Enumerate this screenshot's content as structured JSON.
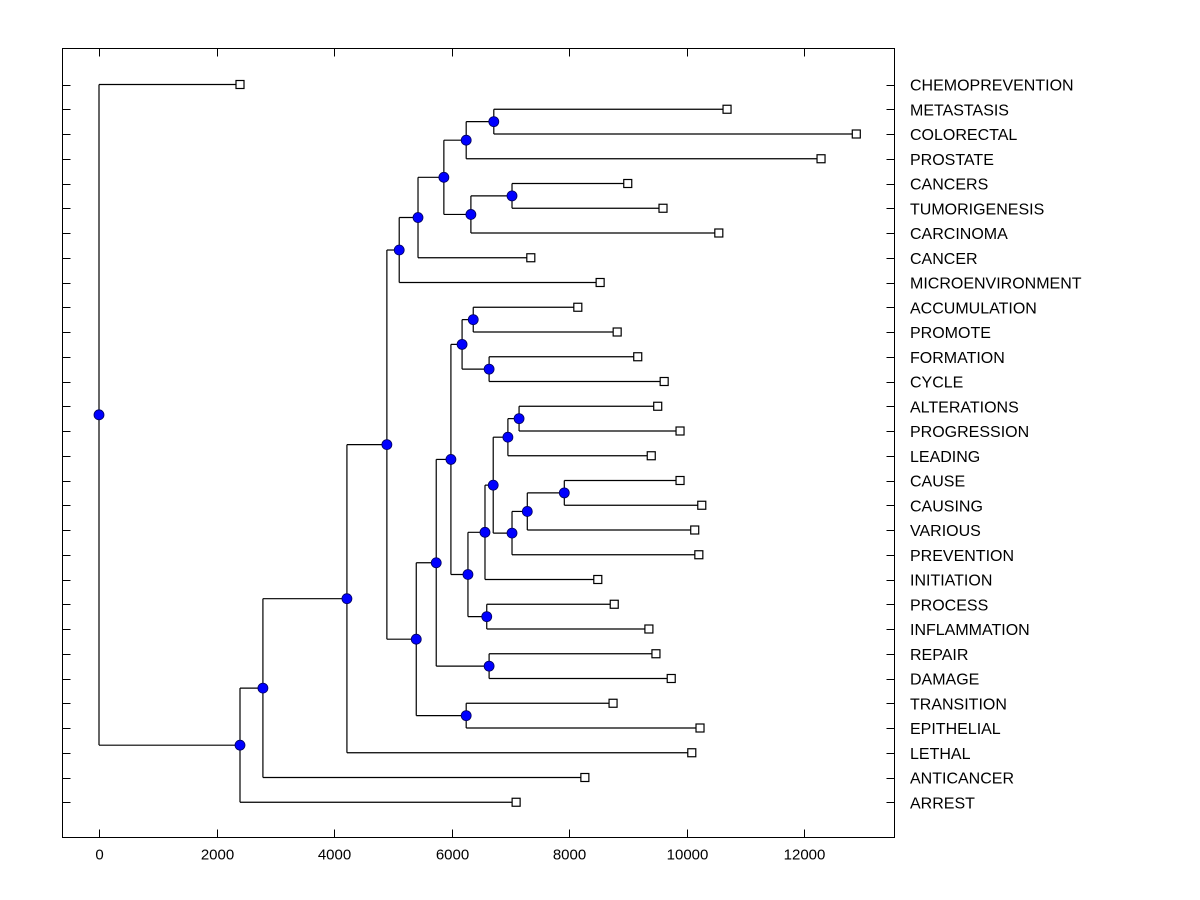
{
  "chart_data": {
    "type": "dendrogram",
    "title": "",
    "xlabel": "",
    "ylabel": "",
    "xlim": [
      -600,
      13500
    ],
    "xticks": [
      0,
      2000,
      4000,
      6000,
      8000,
      10000,
      12000
    ],
    "xtick_labels": [
      "0",
      "2000",
      "4000",
      "6000",
      "8000",
      "10000",
      "12000"
    ],
    "grid": false,
    "node_color": "#0000ff",
    "leaf_marker": "open-square",
    "leaves": [
      {
        "label": "CHEMOPREVENTION",
        "value": 2400
      },
      {
        "label": "METASTASIS",
        "value": 10690
      },
      {
        "label": "COLORECTAL",
        "value": 12890
      },
      {
        "label": "PROSTATE",
        "value": 12290
      },
      {
        "label": "CANCERS",
        "value": 9000
      },
      {
        "label": "TUMORIGENESIS",
        "value": 9600
      },
      {
        "label": "CARCINOMA",
        "value": 10550
      },
      {
        "label": "CANCER",
        "value": 7350
      },
      {
        "label": "MICROENVIRONMENT",
        "value": 8530
      },
      {
        "label": "ACCUMULATION",
        "value": 8150
      },
      {
        "label": "PROMOTE",
        "value": 8820
      },
      {
        "label": "FORMATION",
        "value": 9170
      },
      {
        "label": "CYCLE",
        "value": 9620
      },
      {
        "label": "ALTERATIONS",
        "value": 9510
      },
      {
        "label": "PROGRESSION",
        "value": 9890
      },
      {
        "label": "LEADING",
        "value": 9400
      },
      {
        "label": "CAUSE",
        "value": 9890
      },
      {
        "label": "CAUSING",
        "value": 10260
      },
      {
        "label": "VARIOUS",
        "value": 10140
      },
      {
        "label": "PREVENTION",
        "value": 10210
      },
      {
        "label": "INITIATION",
        "value": 8490
      },
      {
        "label": "PROCESS",
        "value": 8770
      },
      {
        "label": "INFLAMMATION",
        "value": 9360
      },
      {
        "label": "REPAIR",
        "value": 9480
      },
      {
        "label": "DAMAGE",
        "value": 9740
      },
      {
        "label": "TRANSITION",
        "value": 8750
      },
      {
        "label": "EPITHELIAL",
        "value": 10230
      },
      {
        "label": "LETHAL",
        "value": 10090
      },
      {
        "label": "ANTICANCER",
        "value": 8270
      },
      {
        "label": "ARREST",
        "value": 7100
      }
    ],
    "tree": {
      "value": 0,
      "children": [
        "CHEMOPREVENTION",
        {
          "value": 2400,
          "children": [
            {
              "value": 2790,
              "children": [
                {
                  "value": 4220,
                  "children": [
                    {
                      "value": 4900,
                      "children": [
                        {
                          "value": 5110,
                          "children": [
                            {
                              "value": 5430,
                              "children": [
                                {
                                  "value": 5870,
                                  "children": [
                                    {
                                      "value": 6250,
                                      "children": [
                                        {
                                          "value": 6720,
                                          "children": [
                                            "METASTASIS",
                                            "COLORECTAL"
                                          ]
                                        },
                                        "PROSTATE"
                                      ]
                                    },
                                    {
                                      "value": 6330,
                                      "children": [
                                        {
                                          "value": 7030,
                                          "children": [
                                            "CANCERS",
                                            "TUMORIGENESIS"
                                          ]
                                        },
                                        "CARCINOMA"
                                      ]
                                    }
                                  ]
                                },
                                "CANCER"
                              ]
                            },
                            "MICROENVIRONMENT"
                          ]
                        },
                        {
                          "value": 5400,
                          "children": [
                            {
                              "value": 5740,
                              "children": [
                                {
                                  "value": 5990,
                                  "children": [
                                    {
                                      "value": 6180,
                                      "children": [
                                        {
                                          "value": 6370,
                                          "children": [
                                            "ACCUMULATION",
                                            "PROMOTE"
                                          ]
                                        },
                                        {
                                          "value": 6640,
                                          "children": [
                                            "FORMATION",
                                            "CYCLE"
                                          ]
                                        }
                                      ]
                                    },
                                    {
                                      "value": 6280,
                                      "children": [
                                        {
                                          "value": 6570,
                                          "children": [
                                            {
                                              "value": 6710,
                                              "children": [
                                                {
                                                  "value": 6960,
                                                  "children": [
                                                    {
                                                      "value": 7150,
                                                      "children": [
                                                        "ALTERATIONS",
                                                        "PROGRESSION"
                                                      ]
                                                    },
                                                    "LEADING"
                                                  ]
                                                },
                                                {
                                                  "value": 7030,
                                                  "children": [
                                                    {
                                                      "value": 7290,
                                                      "children": [
                                                        {
                                                          "value": 7920,
                                                          "children": [
                                                            "CAUSE",
                                                            "CAUSING"
                                                          ]
                                                        },
                                                        "VARIOUS"
                                                      ]
                                                    },
                                                    "PREVENTION"
                                                  ]
                                                }
                                              ]
                                            },
                                            "INITIATION"
                                          ]
                                        },
                                        {
                                          "value": 6600,
                                          "children": [
                                            "PROCESS",
                                            "INFLAMMATION"
                                          ]
                                        }
                                      ]
                                    }
                                  ]
                                },
                                {
                                  "value": 6640,
                                  "children": [
                                    "REPAIR",
                                    "DAMAGE"
                                  ]
                                }
                              ]
                            },
                            {
                              "value": 6250,
                              "children": [
                                "TRANSITION",
                                "EPITHELIAL"
                              ]
                            }
                          ]
                        }
                      ]
                    },
                    "LETHAL"
                  ]
                },
                "ANTICANCER"
              ]
            },
            "ARREST"
          ]
        }
      ]
    }
  }
}
